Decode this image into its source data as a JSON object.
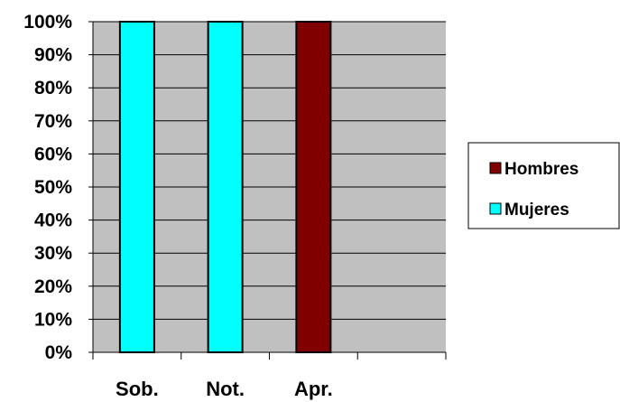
{
  "chart_data": {
    "type": "bar",
    "stacked": true,
    "percent": true,
    "categories": [
      "Sob.",
      "Not.",
      "Apr.",
      ""
    ],
    "series": [
      {
        "name": "Hombres",
        "color": "#800000",
        "values": [
          0,
          0,
          100,
          0
        ]
      },
      {
        "name": "Mujeres",
        "color": "#00ffff",
        "values": [
          100,
          100,
          0,
          0
        ]
      }
    ],
    "y_ticks": [
      "0%",
      "10%",
      "20%",
      "30%",
      "40%",
      "50%",
      "60%",
      "70%",
      "80%",
      "90%",
      "100%"
    ],
    "ylim": [
      0,
      100
    ],
    "grid": true,
    "plot_background": "#c0c0c0",
    "legend_placement": "right",
    "legend_order": [
      "Hombres",
      "Mujeres"
    ]
  }
}
